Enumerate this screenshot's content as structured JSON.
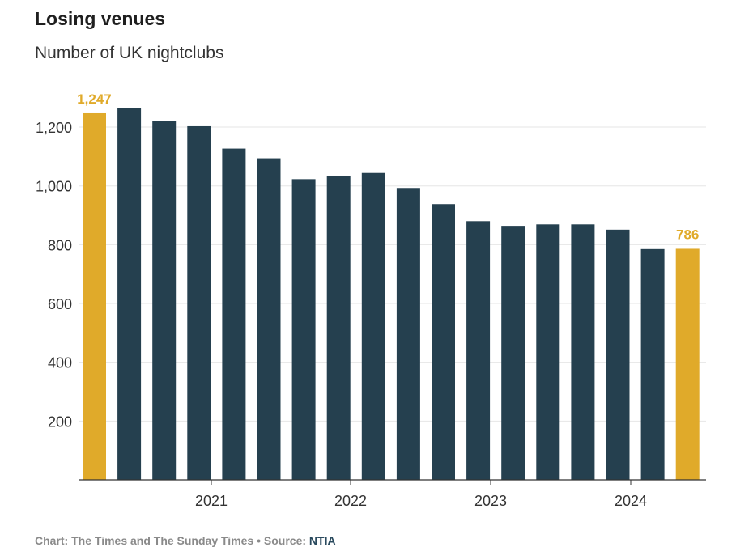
{
  "header": {
    "title": "Losing venues",
    "subtitle": "Number of UK nightclubs"
  },
  "footer": {
    "credit": "Chart: The Times and The Sunday Times",
    "separator": " • Source: ",
    "source": "NTIA"
  },
  "colors": {
    "highlight": "#e0aa2a",
    "bar": "#25404f",
    "grid": "#e6e6e6",
    "axis": "#333333"
  },
  "chart_data": {
    "type": "bar",
    "title": "Losing venues",
    "subtitle": "Number of UK nightclubs",
    "ylim": [
      0,
      1300
    ],
    "yticks": [
      200,
      400,
      600,
      800,
      1000,
      1200
    ],
    "ytick_labels": [
      "200",
      "400",
      "600",
      "800",
      "1,000",
      "1,200"
    ],
    "grid": true,
    "x_tick_labels": [
      "2021",
      "2022",
      "2023",
      "2024"
    ],
    "values": [
      1247,
      1265,
      1222,
      1203,
      1127,
      1094,
      1023,
      1035,
      1044,
      993,
      938,
      880,
      864,
      869,
      869,
      851,
      785,
      786
    ],
    "highlight_indices": [
      0,
      17
    ],
    "data_labels": [
      {
        "index": 0,
        "text": "1,247"
      },
      {
        "index": 17,
        "text": "786"
      }
    ]
  }
}
